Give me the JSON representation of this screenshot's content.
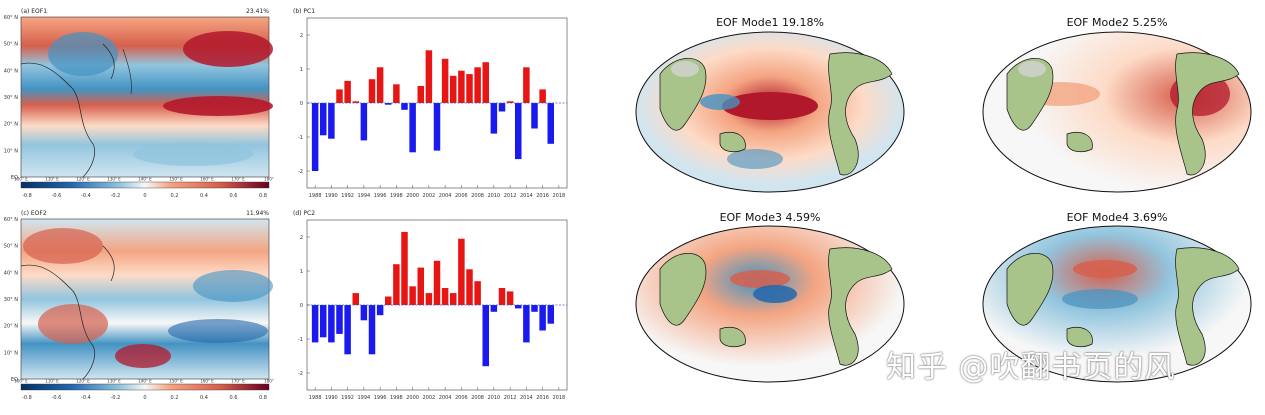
{
  "colors": {
    "positive_bar": "#e81515",
    "negative_bar": "#1a1aee",
    "zero_line": "#3a5fbf",
    "map_red": "#b2182b",
    "map_blue": "#2166ac",
    "land_green": "#a9c48a",
    "land_gray": "#d3d3d3"
  },
  "eof_maps": [
    {
      "label": "(a)  EOF1",
      "percent": "23.41%"
    },
    {
      "label": "(c)  EOF2",
      "percent": "11.94%"
    }
  ],
  "map_lat_ticks": [
    "60° N",
    "50° N",
    "40° N",
    "30° N",
    "20° N",
    "10° N",
    "EQ"
  ],
  "map_lon_ticks": [
    "100° E",
    "110° E",
    "120° E",
    "130° E",
    "140° E",
    "150° E",
    "160° E",
    "170° E",
    "180°"
  ],
  "colorbar_ticks": [
    "-0.8",
    "-0.6",
    "-0.4",
    "-0.2",
    "0",
    "0.2",
    "0.4",
    "0.6",
    "0.8"
  ],
  "chart_data": [
    {
      "type": "bar",
      "title": "(b)  PC1",
      "x": [
        1988,
        1989,
        1990,
        1991,
        1992,
        1993,
        1994,
        1995,
        1996,
        1997,
        1998,
        1999,
        2000,
        2001,
        2002,
        2003,
        2004,
        2005,
        2006,
        2007,
        2008,
        2009,
        2010,
        2011,
        2012,
        2013,
        2014,
        2015,
        2016,
        2017
      ],
      "values": [
        -2.0,
        -0.95,
        -1.05,
        0.4,
        0.65,
        0.05,
        -1.1,
        0.7,
        1.05,
        -0.05,
        0.55,
        -0.2,
        -1.45,
        0.5,
        1.55,
        -1.4,
        1.3,
        0.8,
        0.95,
        0.85,
        1.05,
        1.2,
        -0.9,
        -0.25,
        0.05,
        -1.65,
        1.05,
        -0.75,
        0.4,
        -1.2
      ],
      "x_ticks": [
        "1988",
        "1990",
        "1992",
        "1994",
        "1996",
        "1998",
        "2000",
        "2002",
        "2004",
        "2006",
        "2008",
        "2010",
        "2012",
        "2014",
        "2016",
        "2018"
      ],
      "ylim": [
        -2.5,
        2.5
      ],
      "y_ticks": [
        -2,
        -1,
        0,
        1,
        2
      ]
    },
    {
      "type": "bar",
      "title": "(d)  PC2",
      "x": [
        1988,
        1989,
        1990,
        1991,
        1992,
        1993,
        1994,
        1995,
        1996,
        1997,
        1998,
        1999,
        2000,
        2001,
        2002,
        2003,
        2004,
        2005,
        2006,
        2007,
        2008,
        2009,
        2010,
        2011,
        2012,
        2013,
        2014,
        2015,
        2016,
        2017
      ],
      "values": [
        -1.1,
        -0.95,
        -1.1,
        -0.85,
        -1.45,
        0.35,
        -0.45,
        -1.45,
        -0.3,
        0.25,
        1.2,
        2.15,
        0.55,
        1.1,
        0.35,
        1.3,
        0.5,
        0.35,
        1.95,
        1.05,
        0.7,
        -1.8,
        -0.2,
        0.5,
        0.4,
        -0.1,
        -1.1,
        -0.2,
        -0.75,
        -0.55
      ],
      "x_ticks": [
        "1988",
        "1990",
        "1992",
        "1994",
        "1996",
        "1998",
        "2000",
        "2002",
        "2004",
        "2006",
        "2008",
        "2010",
        "2012",
        "2014",
        "2016",
        "2018"
      ],
      "ylim": [
        -2.5,
        2.5
      ],
      "y_ticks": [
        -2,
        -1,
        0,
        1,
        2
      ]
    }
  ],
  "global_modes": [
    {
      "title": "EOF Mode1  19.18%"
    },
    {
      "title": "EOF Mode2  5.25%"
    },
    {
      "title": "EOF Mode3  4.59%"
    },
    {
      "title": "EOF Mode4  3.69%"
    }
  ],
  "watermark": "知乎 @吹翻书页的风"
}
